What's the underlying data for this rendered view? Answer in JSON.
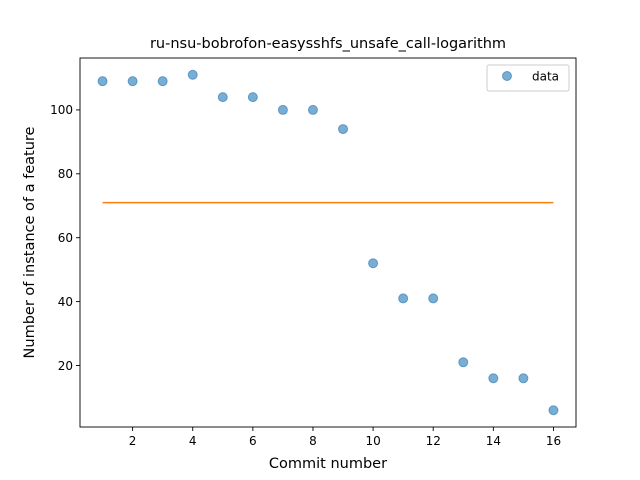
{
  "chart_data": {
    "type": "scatter",
    "title": "ru-nsu-bobrofon-easysshfs_unsafe_call-logarithm",
    "xlabel": "Commit number",
    "ylabel": "Number of instance of a feature",
    "xlim": [
      0.25,
      16.75
    ],
    "ylim": [
      0.75,
      116.25
    ],
    "xticks": [
      2,
      4,
      6,
      8,
      10,
      12,
      14,
      16
    ],
    "yticks": [
      20,
      40,
      60,
      80,
      100
    ],
    "grid": false,
    "legend_position": "top-right",
    "series": [
      {
        "name": "data",
        "kind": "scatter",
        "color": "#1f77b4",
        "x": [
          1,
          2,
          3,
          4,
          5,
          6,
          7,
          8,
          9,
          10,
          11,
          12,
          13,
          14,
          15,
          16
        ],
        "y": [
          109,
          109,
          109,
          111,
          104,
          104,
          100,
          100,
          94,
          52,
          41,
          41,
          21,
          16,
          16,
          6
        ]
      },
      {
        "kind": "line",
        "color": "#ff7f0e",
        "x": [
          1,
          16
        ],
        "y": [
          71,
          71
        ]
      }
    ]
  }
}
